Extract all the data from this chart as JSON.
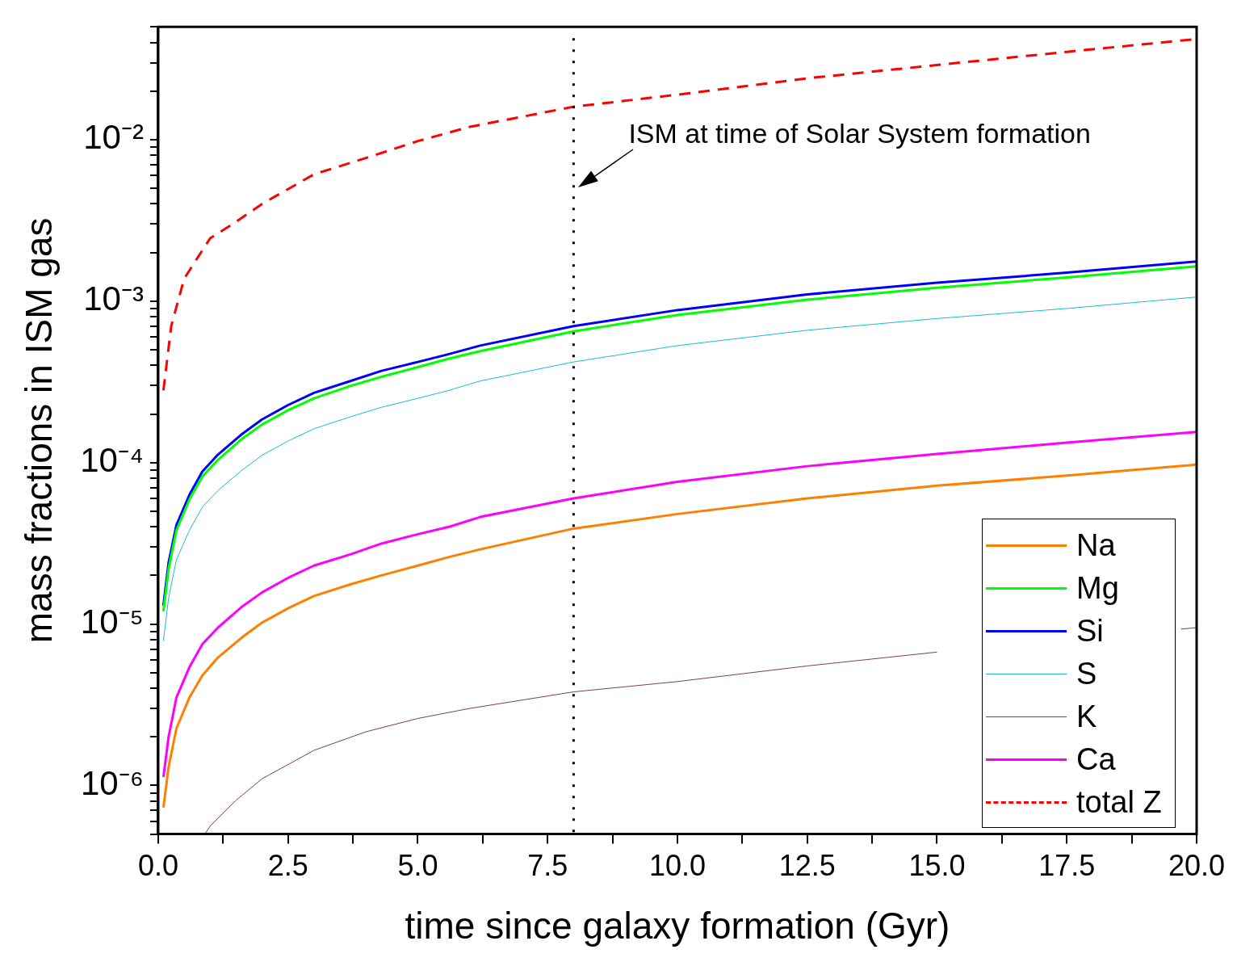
{
  "chart_data": {
    "type": "line",
    "xlabel": "time since galaxy formation (Gyr)",
    "ylabel": "mass fractions in ISM gas",
    "x": [
      0.1,
      0.2,
      0.35,
      0.6,
      0.85,
      1.15,
      1.6,
      2,
      2.5,
      3,
      3.7,
      4.3,
      5,
      5.6,
      6.2,
      8,
      10,
      12.5,
      15,
      17.5,
      20
    ],
    "series": [
      {
        "name": "Na",
        "color": "#ff7f00",
        "values": [
          7.3e-07,
          1.3e-06,
          2.25e-06,
          3.5e-06,
          4.8e-06,
          6.2e-06,
          8.2e-06,
          1.02e-05,
          1.25e-05,
          1.49e-05,
          1.76e-05,
          2e-05,
          2.3e-05,
          2.6e-05,
          2.9e-05,
          3.9e-05,
          4.8e-05,
          6e-05,
          7.2e-05,
          8.3e-05,
          9.7e-05
        ]
      },
      {
        "name": "Mg",
        "color": "#00ff00",
        "values": [
          1.2e-05,
          2.2e-05,
          3.8e-05,
          5.9e-05,
          8.2e-05,
          0.000104,
          0.000139,
          0.000172,
          0.000211,
          0.00025,
          0.000298,
          0.00034,
          0.00039,
          0.00044,
          0.00049,
          0.00065,
          0.00082,
          0.00102,
          0.00121,
          0.0014,
          0.00164
        ]
      },
      {
        "name": "Si",
        "color": "#0000ff",
        "values": [
          1.3e-05,
          2.4e-05,
          4.1e-05,
          6.3e-05,
          8.8e-05,
          0.000112,
          0.000149,
          0.000185,
          0.000227,
          0.00027,
          0.00032,
          0.00037,
          0.00042,
          0.00047,
          0.00053,
          0.0007,
          0.00088,
          0.0011,
          0.0013,
          0.0015,
          0.00176
        ]
      },
      {
        "name": "S",
        "color": "#17becf",
        "values": [
          7.9e-06,
          1.45e-05,
          2.5e-05,
          3.8e-05,
          5.3e-05,
          6.7e-05,
          8.9e-05,
          0.000111,
          0.000136,
          0.000162,
          0.000192,
          0.00022,
          0.00025,
          0.00028,
          0.00032,
          0.00042,
          0.00053,
          0.00066,
          0.00078,
          0.0009,
          0.00106
        ]
      },
      {
        "name": "K",
        "color": "#804040",
        "x": [
          0.9,
          1,
          1.5,
          2,
          3,
          4,
          5,
          6,
          8,
          10,
          12.5,
          15,
          17.5,
          19.7,
          20
        ],
        "values": [
          5e-07,
          5.6e-07,
          8.1e-07,
          1.1e-06,
          1.65e-06,
          2.15e-06,
          2.6e-06,
          3e-06,
          3.8e-06,
          4.4e-06,
          5.5e-06,
          6.7e-06,
          null,
          9.3e-06,
          9.5e-06
        ]
      },
      {
        "name": "Ca",
        "color": "#ff00ff",
        "values": [
          1.13e-06,
          2e-06,
          3.5e-06,
          5.4e-06,
          7.5e-06,
          9.5e-06,
          1.27e-05,
          1.57e-05,
          1.93e-05,
          2.3e-05,
          2.7e-05,
          3.15e-05,
          3.6e-05,
          4e-05,
          4.6e-05,
          6e-05,
          7.6e-05,
          9.5e-05,
          0.000113,
          0.000133,
          0.000155
        ]
      },
      {
        "name": "total Z",
        "color": "#ff0000",
        "line_style": "dashed",
        "x": [
          0.1,
          0.25,
          0.5,
          1,
          1.5,
          2,
          3,
          4,
          5,
          6,
          8,
          10,
          12.5,
          15,
          17.5,
          20
        ],
        "values": [
          0.00028,
          0.0007,
          0.00138,
          0.00245,
          0.0031,
          0.004,
          0.0061,
          0.0077,
          0.0098,
          0.012,
          0.016,
          0.019,
          0.024,
          0.029,
          0.035,
          0.042
        ]
      }
    ],
    "xlim": [
      0,
      20
    ],
    "xticks": [
      {
        "value": 0,
        "label": "0.0"
      },
      {
        "value": 1.25,
        "label": null
      },
      {
        "value": 2.5,
        "label": "2.5"
      },
      {
        "value": 3.75,
        "label": null
      },
      {
        "value": 5,
        "label": "5.0"
      },
      {
        "value": 6.25,
        "label": null
      },
      {
        "value": 7.5,
        "label": "7.5"
      },
      {
        "value": 8.75,
        "label": null
      },
      {
        "value": 10,
        "label": "10.0"
      },
      {
        "value": 11.25,
        "label": null
      },
      {
        "value": 12.5,
        "label": "12.5"
      },
      {
        "value": 13.75,
        "label": null
      },
      {
        "value": 15,
        "label": "15.0"
      },
      {
        "value": 16.25,
        "label": null
      },
      {
        "value": 17.5,
        "label": "17.5"
      },
      {
        "value": 18.75,
        "label": null
      },
      {
        "value": 20,
        "label": "20.0"
      }
    ],
    "ylim": [
      5e-07,
      0.05
    ],
    "yticks": [
      {
        "value": 5e-07,
        "label": null
      },
      {
        "value": 6e-07,
        "label": null
      },
      {
        "value": 7e-07,
        "label": null
      },
      {
        "value": 8e-07,
        "label": null
      },
      {
        "value": 9e-07,
        "label": null
      },
      {
        "value": 1e-06,
        "label": "10⁻⁶"
      },
      {
        "value": 2e-06,
        "label": null
      },
      {
        "value": 3e-06,
        "label": null
      },
      {
        "value": 4e-06,
        "label": null
      },
      {
        "value": 5e-06,
        "label": null
      },
      {
        "value": 6e-06,
        "label": null
      },
      {
        "value": 7e-06,
        "label": null
      },
      {
        "value": 8e-06,
        "label": null
      },
      {
        "value": 9e-06,
        "label": null
      },
      {
        "value": 1e-05,
        "label": "10⁻⁵"
      },
      {
        "value": 2e-05,
        "label": null
      },
      {
        "value": 3e-05,
        "label": null
      },
      {
        "value": 4e-05,
        "label": null
      },
      {
        "value": 5e-05,
        "label": null
      },
      {
        "value": 6e-05,
        "label": null
      },
      {
        "value": 7e-05,
        "label": null
      },
      {
        "value": 8e-05,
        "label": null
      },
      {
        "value": 9e-05,
        "label": null
      },
      {
        "value": 0.0001,
        "label": "10⁻⁴"
      },
      {
        "value": 0.0002,
        "label": null
      },
      {
        "value": 0.0003,
        "label": null
      },
      {
        "value": 0.0004,
        "label": null
      },
      {
        "value": 0.0005,
        "label": null
      },
      {
        "value": 0.0006,
        "label": null
      },
      {
        "value": 0.0007,
        "label": null
      },
      {
        "value": 0.0008,
        "label": null
      },
      {
        "value": 0.0009,
        "label": null
      },
      {
        "value": 0.001,
        "label": "10⁻³"
      },
      {
        "value": 0.002,
        "label": null
      },
      {
        "value": 0.003,
        "label": null
      },
      {
        "value": 0.004,
        "label": null
      },
      {
        "value": 0.005,
        "label": null
      },
      {
        "value": 0.006,
        "label": null
      },
      {
        "value": 0.007,
        "label": null
      },
      {
        "value": 0.008,
        "label": null
      },
      {
        "value": 0.009,
        "label": null
      },
      {
        "value": 0.01,
        "label": "10⁻²"
      },
      {
        "value": 0.02,
        "label": null
      },
      {
        "value": 0.03,
        "label": null
      },
      {
        "value": 0.04,
        "label": null
      },
      {
        "value": 0.05,
        "label": null
      }
    ],
    "log": "y",
    "grid": false,
    "legend": "bottom right",
    "marker": "none",
    "ref_lines": [
      {
        "axis": "x",
        "value": 8,
        "color": "#000000",
        "line_style": "dotted"
      }
    ],
    "annotations": [
      {
        "text": "ISM at time of Solar System formation",
        "x": 8,
        "y": 0.005
      }
    ]
  }
}
